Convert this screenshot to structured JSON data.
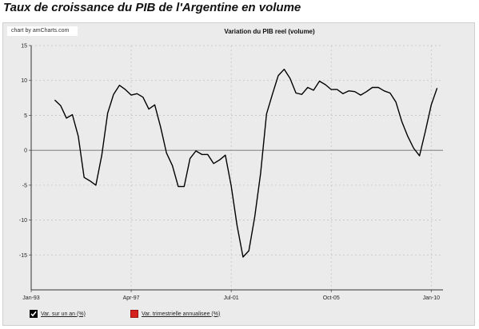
{
  "page": {
    "title": "Taux de croissance du PIB de l'Argentine en volume",
    "credit": "chart by amCharts.com"
  },
  "colors": {
    "background": "#ebebeb",
    "line": "#000000",
    "zero_line": "#6e6e6e",
    "grid": "#c4c4c4",
    "series_1": "#000000",
    "series_2": "#d62020"
  },
  "legend": [
    {
      "label": "Var. sur un an (%)",
      "color": "#000000",
      "checked": true
    },
    {
      "label": "Var. trimestrielle annualisee (%)",
      "color": "#d62020",
      "checked": false
    }
  ],
  "chart_data": {
    "type": "line",
    "title": "Variation du PIB reel (volume)",
    "xlabel": "",
    "ylabel": "",
    "ylim": [
      -20,
      15
    ],
    "y_ticks": [
      "15",
      "10",
      "5",
      "0",
      "-5",
      "-10",
      "-15"
    ],
    "y_tick_values": [
      15,
      10,
      5,
      0,
      -5,
      -10,
      -15
    ],
    "x_ticks": [
      "Jan-93",
      "Apr-97",
      "Jul-01",
      "Oct-05",
      "Jan-10"
    ],
    "x_tick_values": [
      1993.0,
      1997.25,
      2001.5,
      2005.75,
      2010.0
    ],
    "xlim": [
      1993.0,
      2010.5
    ],
    "grid": true,
    "legend_position": "bottom-left",
    "series": [
      {
        "name": "Var. sur un an (%)",
        "x": [
          1994.0,
          1994.25,
          1994.5,
          1994.75,
          1995.0,
          1995.25,
          1995.5,
          1995.75,
          1996.0,
          1996.25,
          1996.5,
          1996.75,
          1997.0,
          1997.25,
          1997.5,
          1997.75,
          1998.0,
          1998.25,
          1998.5,
          1998.75,
          1999.0,
          1999.25,
          1999.5,
          1999.75,
          2000.0,
          2000.25,
          2000.5,
          2000.75,
          2001.0,
          2001.25,
          2001.5,
          2001.75,
          2002.0,
          2002.25,
          2002.5,
          2002.75,
          2003.0,
          2003.25,
          2003.5,
          2003.75,
          2004.0,
          2004.25,
          2004.5,
          2004.75,
          2005.0,
          2005.25,
          2005.5,
          2005.75,
          2006.0,
          2006.25,
          2006.5,
          2006.75,
          2007.0,
          2007.25,
          2007.5,
          2007.75,
          2008.0,
          2008.25,
          2008.5,
          2008.75,
          2009.0,
          2009.25,
          2009.5,
          2009.75,
          2010.0,
          2010.25
        ],
        "values": [
          7.2,
          6.4,
          4.6,
          5.1,
          2.0,
          -3.9,
          -4.4,
          -5.0,
          -0.7,
          5.3,
          8.0,
          9.3,
          8.7,
          7.9,
          8.1,
          7.6,
          5.9,
          6.5,
          3.3,
          -0.4,
          -2.2,
          -5.2,
          -5.2,
          -1.2,
          -0.1,
          -0.6,
          -0.6,
          -1.9,
          -1.4,
          -0.7,
          -5.1,
          -10.8,
          -15.3,
          -14.4,
          -9.5,
          -3.3,
          5.2,
          8.0,
          10.7,
          11.6,
          10.3,
          8.2,
          8.0,
          9.0,
          8.6,
          9.9,
          9.4,
          8.7,
          8.7,
          8.1,
          8.5,
          8.4,
          7.9,
          8.4,
          9.0,
          9.0,
          8.5,
          8.2,
          6.9,
          4.1,
          2.0,
          0.3,
          -0.8,
          2.7,
          6.5,
          8.9
        ]
      }
    ]
  }
}
